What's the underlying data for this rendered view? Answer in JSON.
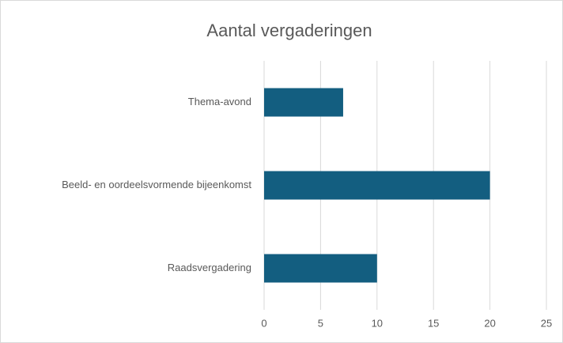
{
  "chart_data": {
    "type": "bar",
    "orientation": "horizontal",
    "title": "Aantal vergaderingen",
    "categories": [
      "Thema-avond",
      "Beeld- en oordeelsvormende bijeenkomst",
      "Raadsvergadering"
    ],
    "values": [
      7,
      20,
      10
    ],
    "color": "#135e80",
    "xlim": [
      0,
      25
    ],
    "xticks": [
      0,
      5,
      10,
      15,
      20,
      25
    ],
    "grid": true
  }
}
